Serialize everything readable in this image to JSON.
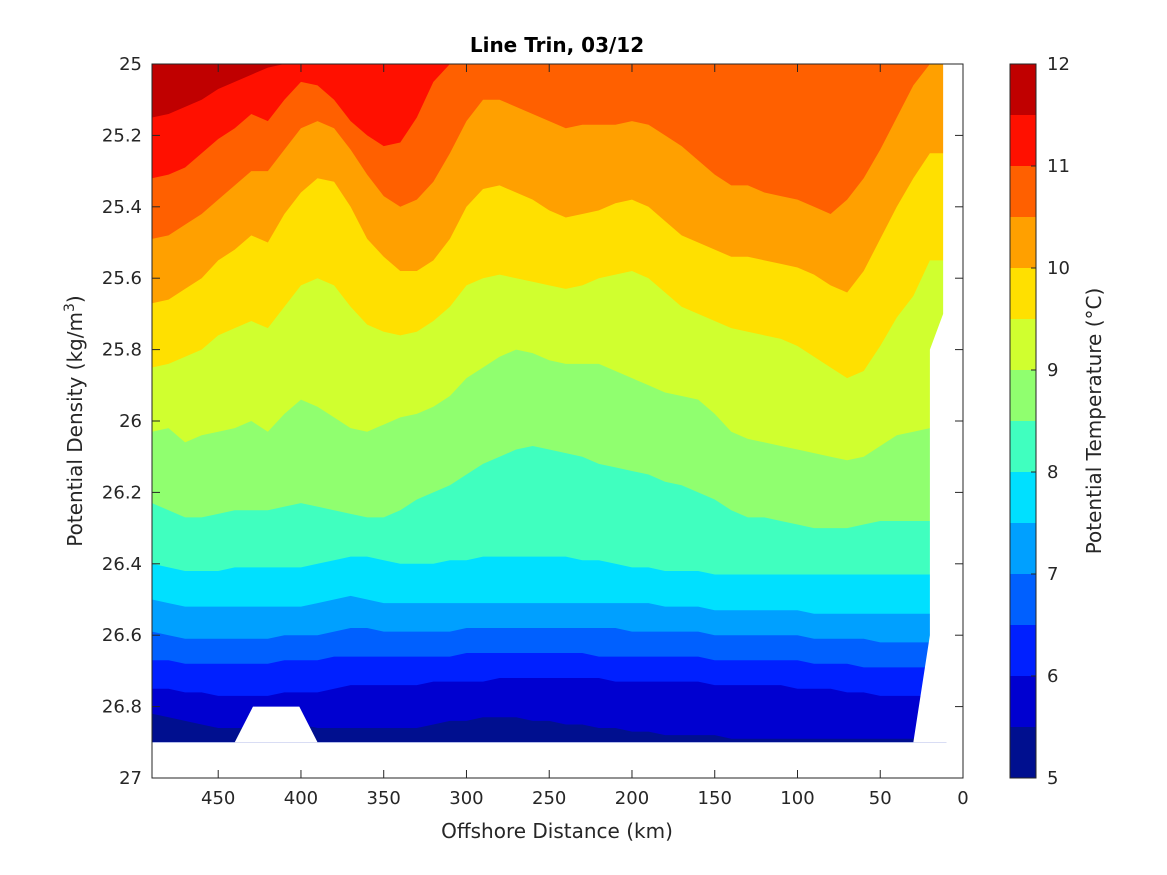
{
  "chart_data": {
    "type": "heatmap",
    "subtype": "filled-contour",
    "title": "Line Trin, 03/12",
    "xlabel": "Offshore Distance (km)",
    "ylabel": "Potential Density (kg/m",
    "ylabel_superscript": "3",
    "ylabel_suffix": ")",
    "colorbar_label": "Potential Temperature (°C)",
    "x_axis_reversed": true,
    "y_axis_reversed": true,
    "xlim": [
      0,
      490
    ],
    "ylim": [
      25,
      27
    ],
    "x_ticks": [
      450,
      400,
      350,
      300,
      250,
      200,
      150,
      100,
      50,
      0
    ],
    "x_tick_labels": [
      "450",
      "400",
      "350",
      "300",
      "250",
      "200",
      "150",
      "100",
      "50",
      "0"
    ],
    "y_ticks": [
      25,
      25.2,
      25.4,
      25.6,
      25.8,
      26,
      26.2,
      26.4,
      26.6,
      26.8,
      27
    ],
    "y_tick_labels": [
      "25",
      "25.2",
      "25.4",
      "25.6",
      "25.8",
      "26",
      "26.2",
      "26.4",
      "26.6",
      "26.8",
      "27"
    ],
    "colorbar_ticks": [
      5,
      6,
      7,
      8,
      9,
      10,
      11,
      12
    ],
    "colorbar_tick_labels": [
      "5",
      "6",
      "7",
      "8",
      "9",
      "10",
      "11",
      "12"
    ],
    "color_levels": [
      5,
      5.5,
      6,
      6.5,
      7,
      7.5,
      8,
      8.5,
      9,
      9.5,
      10,
      10.5,
      11,
      11.5,
      12
    ],
    "colormap": [
      "#000f8f",
      "#0000d0",
      "#0020ff",
      "#0060ff",
      "#00a0ff",
      "#00e0ff",
      "#40ffbf",
      "#90ff6f",
      "#d0ff2f",
      "#ffe000",
      "#ffa000",
      "#ff6000",
      "#ff1000",
      "#c00000"
    ],
    "grid": false,
    "x": [
      490,
      480,
      470,
      460,
      450,
      440,
      430,
      420,
      410,
      400,
      390,
      380,
      370,
      360,
      350,
      340,
      330,
      320,
      310,
      300,
      290,
      280,
      270,
      260,
      250,
      240,
      230,
      220,
      210,
      200,
      190,
      180,
      170,
      160,
      150,
      140,
      130,
      120,
      110,
      100,
      90,
      80,
      70,
      60,
      50,
      40,
      30,
      20,
      10
    ],
    "isopycnal_boundaries": [
      {
        "level": 11.5,
        "y": [
          25.15,
          25.14,
          25.12,
          25.1,
          25.07,
          25.05,
          25.03,
          25.01,
          25,
          25,
          25,
          25,
          25,
          25,
          25,
          25,
          25,
          25,
          25,
          25,
          25,
          25,
          25,
          25,
          25,
          25,
          25,
          25,
          25,
          25,
          25,
          25,
          25,
          25,
          25,
          25,
          25,
          25,
          25,
          25,
          25,
          25,
          25,
          25,
          25,
          25,
          25,
          25,
          25
        ]
      },
      {
        "level": 11,
        "y": [
          25.32,
          25.31,
          25.29,
          25.25,
          25.21,
          25.18,
          25.14,
          25.16,
          25.1,
          25.05,
          25.06,
          25.1,
          25.16,
          25.2,
          25.23,
          25.22,
          25.15,
          25.05,
          25,
          25,
          25,
          25,
          25,
          25,
          25,
          25,
          25,
          25,
          25,
          25,
          25,
          25,
          25,
          25,
          25,
          25,
          25,
          25,
          25,
          25,
          25,
          25,
          25,
          25,
          25,
          25,
          25,
          25,
          25
        ]
      },
      {
        "level": 10.5,
        "y": [
          25.49,
          25.48,
          25.45,
          25.42,
          25.38,
          25.34,
          25.3,
          25.3,
          25.24,
          25.18,
          25.16,
          25.18,
          25.24,
          25.31,
          25.37,
          25.4,
          25.38,
          25.33,
          25.25,
          25.16,
          25.1,
          25.1,
          25.12,
          25.14,
          25.16,
          25.18,
          25.17,
          25.17,
          25.17,
          25.16,
          25.17,
          25.2,
          25.23,
          25.27,
          25.31,
          25.34,
          25.34,
          25.36,
          25.37,
          25.38,
          25.4,
          25.42,
          25.38,
          25.32,
          25.24,
          25.15,
          25.06,
          25,
          25
        ]
      },
      {
        "level": 10,
        "y": [
          25.67,
          25.66,
          25.63,
          25.6,
          25.55,
          25.52,
          25.48,
          25.5,
          25.42,
          25.36,
          25.32,
          25.33,
          25.4,
          25.49,
          25.54,
          25.58,
          25.58,
          25.55,
          25.49,
          25.4,
          25.35,
          25.34,
          25.36,
          25.38,
          25.41,
          25.43,
          25.42,
          25.41,
          25.39,
          25.38,
          25.4,
          25.44,
          25.48,
          25.5,
          25.52,
          25.54,
          25.54,
          25.55,
          25.56,
          25.57,
          25.59,
          25.62,
          25.64,
          25.58,
          25.49,
          25.4,
          25.32,
          25.25,
          25.25
        ]
      },
      {
        "level": 9.5,
        "y": [
          25.85,
          25.84,
          25.82,
          25.8,
          25.76,
          25.74,
          25.72,
          25.74,
          25.68,
          25.62,
          25.6,
          25.62,
          25.68,
          25.73,
          25.75,
          25.76,
          25.75,
          25.72,
          25.68,
          25.62,
          25.6,
          25.59,
          25.6,
          25.61,
          25.62,
          25.63,
          25.62,
          25.6,
          25.59,
          25.58,
          25.6,
          25.64,
          25.68,
          25.7,
          25.72,
          25.74,
          25.75,
          25.76,
          25.77,
          25.79,
          25.82,
          25.85,
          25.88,
          25.86,
          25.79,
          25.71,
          25.65,
          25.55,
          25.55
        ]
      },
      {
        "level": 9,
        "y": [
          26.03,
          26.02,
          26.06,
          26.04,
          26.03,
          26.02,
          26,
          26.03,
          25.98,
          25.94,
          25.96,
          25.99,
          26.02,
          26.03,
          26.01,
          25.99,
          25.98,
          25.96,
          25.93,
          25.88,
          25.85,
          25.82,
          25.8,
          25.81,
          25.83,
          25.84,
          25.84,
          25.84,
          25.86,
          25.88,
          25.9,
          25.92,
          25.93,
          25.94,
          25.98,
          26.03,
          26.05,
          26.06,
          26.07,
          26.08,
          26.09,
          26.1,
          26.11,
          26.1,
          26.07,
          26.04,
          26.03,
          26.02,
          26.02
        ]
      },
      {
        "level": 8.5,
        "y": [
          26.23,
          26.25,
          26.27,
          26.27,
          26.26,
          26.25,
          26.25,
          26.25,
          26.24,
          26.23,
          26.24,
          26.25,
          26.26,
          26.27,
          26.27,
          26.25,
          26.22,
          26.2,
          26.18,
          26.15,
          26.12,
          26.1,
          26.08,
          26.07,
          26.08,
          26.09,
          26.1,
          26.12,
          26.13,
          26.14,
          26.15,
          26.17,
          26.18,
          26.2,
          26.22,
          26.25,
          26.27,
          26.27,
          26.28,
          26.29,
          26.3,
          26.3,
          26.3,
          26.29,
          26.28,
          26.28,
          26.28,
          26.28,
          26.28
        ]
      },
      {
        "level": 8,
        "y": [
          26.4,
          26.41,
          26.42,
          26.42,
          26.42,
          26.41,
          26.41,
          26.41,
          26.41,
          26.41,
          26.4,
          26.39,
          26.38,
          26.38,
          26.39,
          26.4,
          26.4,
          26.4,
          26.39,
          26.39,
          26.38,
          26.38,
          26.38,
          26.38,
          26.38,
          26.38,
          26.39,
          26.39,
          26.4,
          26.41,
          26.41,
          26.42,
          26.42,
          26.42,
          26.43,
          26.43,
          26.43,
          26.43,
          26.43,
          26.43,
          26.43,
          26.43,
          26.43,
          26.43,
          26.43,
          26.43,
          26.43,
          26.43,
          26.43
        ]
      },
      {
        "level": 7.5,
        "y": [
          26.5,
          26.51,
          26.52,
          26.52,
          26.52,
          26.52,
          26.52,
          26.52,
          26.52,
          26.52,
          26.51,
          26.5,
          26.49,
          26.5,
          26.51,
          26.51,
          26.51,
          26.51,
          26.51,
          26.51,
          26.51,
          26.51,
          26.51,
          26.51,
          26.51,
          26.51,
          26.51,
          26.51,
          26.51,
          26.51,
          26.51,
          26.52,
          26.52,
          26.52,
          26.53,
          26.53,
          26.53,
          26.53,
          26.53,
          26.53,
          26.54,
          26.54,
          26.54,
          26.54,
          26.54,
          26.54,
          26.54,
          26.54,
          26.54
        ]
      },
      {
        "level": 7,
        "y": [
          26.59,
          26.6,
          26.61,
          26.61,
          26.61,
          26.61,
          26.61,
          26.61,
          26.6,
          26.6,
          26.6,
          26.59,
          26.58,
          26.58,
          26.59,
          26.59,
          26.59,
          26.59,
          26.59,
          26.58,
          26.58,
          26.58,
          26.58,
          26.58,
          26.58,
          26.58,
          26.58,
          26.58,
          26.58,
          26.59,
          26.59,
          26.59,
          26.59,
          26.59,
          26.6,
          26.6,
          26.6,
          26.6,
          26.6,
          26.6,
          26.61,
          26.61,
          26.61,
          26.61,
          26.62,
          26.62,
          26.62,
          26.62,
          26.62
        ]
      },
      {
        "level": 6.5,
        "y": [
          26.67,
          26.67,
          26.68,
          26.68,
          26.68,
          26.68,
          26.68,
          26.68,
          26.67,
          26.67,
          26.67,
          26.66,
          26.66,
          26.66,
          26.66,
          26.66,
          26.66,
          26.66,
          26.66,
          26.65,
          26.65,
          26.65,
          26.65,
          26.65,
          26.65,
          26.65,
          26.65,
          26.66,
          26.66,
          26.66,
          26.66,
          26.66,
          26.66,
          26.66,
          26.67,
          26.67,
          26.67,
          26.67,
          26.67,
          26.67,
          26.68,
          26.68,
          26.68,
          26.69,
          26.69,
          26.69,
          26.69,
          26.69,
          26.69
        ]
      },
      {
        "level": 6,
        "y": [
          26.75,
          26.75,
          26.76,
          26.76,
          26.77,
          26.77,
          26.77,
          26.77,
          26.76,
          26.76,
          26.76,
          26.75,
          26.74,
          26.74,
          26.74,
          26.74,
          26.74,
          26.73,
          26.73,
          26.73,
          26.73,
          26.72,
          26.72,
          26.72,
          26.72,
          26.72,
          26.72,
          26.72,
          26.73,
          26.73,
          26.73,
          26.73,
          26.73,
          26.73,
          26.74,
          26.74,
          26.74,
          26.74,
          26.74,
          26.75,
          26.75,
          26.75,
          26.76,
          26.76,
          26.77,
          26.77,
          26.77,
          26.77,
          26.77
        ]
      },
      {
        "level": 5.5,
        "y": [
          26.82,
          26.83,
          26.84,
          26.85,
          26.86,
          26.86,
          26.86,
          26.86,
          26.85,
          26.85,
          26.86,
          26.86,
          26.86,
          26.86,
          26.86,
          26.86,
          26.86,
          26.85,
          26.84,
          26.84,
          26.83,
          26.83,
          26.83,
          26.84,
          26.84,
          26.85,
          26.85,
          26.86,
          26.86,
          26.87,
          26.87,
          26.88,
          26.88,
          26.88,
          26.88,
          26.89,
          26.89,
          26.89,
          26.89,
          26.89,
          26.89,
          26.89,
          26.89,
          26.89,
          26.89,
          26.89,
          26.89,
          26.89,
          26.89
        ]
      }
    ],
    "data_bottom_density": 26.9,
    "data_gaps": [
      {
        "x": [
          440,
          390
        ],
        "top_density": 26.8,
        "note": ""
      }
    ],
    "coastal_edge_x": [
      12,
      12,
      12,
      20,
      20,
      30
    ],
    "coastal_edge_y": [
      25,
      25.5,
      25.7,
      25.8,
      26.6,
      26.9
    ]
  }
}
